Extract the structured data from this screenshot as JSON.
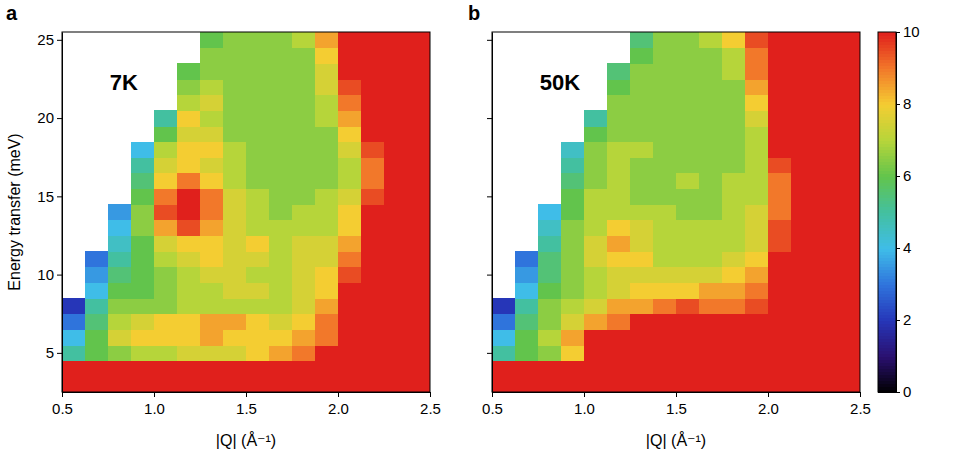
{
  "chart_data": [
    {
      "type": "heatmap",
      "label": "a",
      "annotation": "7K",
      "x_label": "|Q| (Å⁻¹)",
      "y_label": "Energy transfer (meV)",
      "xlim": [
        0.5,
        2.5
      ],
      "ylim": [
        2.5,
        25.5
      ],
      "xticks": [
        0.5,
        {
          "value": 1.0,
          "label": "1.0"
        },
        1.5,
        {
          "value": 2.0,
          "label": "2.0"
        },
        2.5
      ],
      "yticks": [
        5,
        10,
        15,
        20,
        25
      ],
      "x": [
        0.5625,
        0.6875,
        0.8125,
        0.9375,
        1.0625,
        1.1875,
        1.3125,
        1.4375,
        1.5625,
        1.6875,
        1.8125,
        1.9375,
        2.0625,
        2.1875,
        2.3125,
        2.4375
      ],
      "y": [
        3,
        4,
        5,
        6,
        7,
        8,
        9,
        10,
        11,
        12,
        13,
        14,
        15,
        16,
        17,
        18,
        19,
        20,
        21,
        22,
        23,
        24,
        25
      ],
      "z": [
        [
          10,
          10,
          10,
          10,
          10,
          10,
          10,
          10,
          10,
          10,
          10,
          10,
          10,
          10,
          10,
          10
        ],
        [
          10,
          10,
          10,
          10,
          10,
          10,
          10,
          10,
          10,
          10,
          10,
          10,
          10,
          10,
          10,
          10
        ],
        [
          5,
          6,
          6.5,
          7,
          7,
          7.5,
          7.5,
          7.5,
          8,
          8.5,
          9,
          10,
          10,
          10,
          10,
          10
        ],
        [
          4,
          6,
          7.5,
          8,
          8,
          8,
          8.5,
          8,
          8,
          8,
          8.5,
          9,
          10,
          10,
          10,
          10
        ],
        [
          3,
          5.5,
          7,
          7.5,
          8,
          8,
          8.5,
          8.5,
          8,
          7.5,
          8,
          9,
          10,
          10,
          10,
          10
        ],
        [
          2,
          5,
          6.5,
          6.5,
          6.5,
          7,
          7,
          7,
          7,
          7,
          7.5,
          8.5,
          10,
          10,
          10,
          10
        ],
        [
          null,
          4,
          6,
          6,
          6.5,
          7,
          7,
          7.5,
          7.5,
          7,
          7.5,
          8,
          10,
          10,
          10,
          10
        ],
        [
          null,
          3.5,
          5.5,
          6,
          6.5,
          7,
          7.5,
          7.5,
          7,
          7,
          7.5,
          8,
          9.5,
          10,
          10,
          10
        ],
        [
          null,
          3,
          5,
          6,
          7,
          7.5,
          8,
          7.5,
          7.5,
          7,
          7.5,
          7.5,
          9,
          10,
          10,
          10
        ],
        [
          null,
          null,
          4.5,
          6,
          7.5,
          8,
          8,
          7.5,
          8,
          7,
          7.5,
          7.5,
          8.5,
          10,
          10,
          10
        ],
        [
          null,
          null,
          4,
          6.5,
          8.5,
          9.5,
          8.5,
          7.5,
          7,
          7,
          7,
          7,
          8,
          10,
          10,
          10
        ],
        [
          null,
          null,
          3.5,
          6.5,
          9.5,
          10,
          9,
          7.5,
          7,
          6.5,
          7,
          7,
          8,
          10,
          10,
          10
        ],
        [
          null,
          null,
          null,
          6,
          9,
          10,
          9,
          7.5,
          7,
          6.5,
          6.5,
          7,
          7.5,
          9.5,
          10,
          10
        ],
        [
          null,
          null,
          null,
          5.5,
          8,
          9,
          8,
          7,
          6.5,
          6.5,
          6.5,
          6.5,
          7,
          9,
          10,
          10
        ],
        [
          null,
          null,
          null,
          5,
          7.5,
          8,
          7.5,
          7,
          6.5,
          6.5,
          6.5,
          6.5,
          7,
          9,
          10,
          10
        ],
        [
          null,
          null,
          null,
          4,
          7,
          8,
          8,
          7,
          6.5,
          6.5,
          6.5,
          6.5,
          7.5,
          9.5,
          10,
          10
        ],
        [
          null,
          null,
          null,
          null,
          6,
          7.5,
          7.5,
          6.5,
          6.5,
          6.5,
          6.5,
          6.5,
          8,
          10,
          10,
          10
        ],
        [
          null,
          null,
          null,
          null,
          5,
          8,
          7,
          6.5,
          6.5,
          6.5,
          6.5,
          7,
          8.5,
          10,
          10,
          10
        ],
        [
          null,
          null,
          null,
          null,
          null,
          7,
          7.5,
          6.5,
          6.5,
          6.5,
          6.5,
          7,
          9,
          10,
          10,
          10
        ],
        [
          null,
          null,
          null,
          null,
          null,
          6.5,
          7,
          6.5,
          6.5,
          6.5,
          6.5,
          7.5,
          9.5,
          10,
          10,
          10
        ],
        [
          null,
          null,
          null,
          null,
          null,
          6,
          6.5,
          6.5,
          6.5,
          6.5,
          6.5,
          7.5,
          10,
          10,
          10,
          10
        ],
        [
          null,
          null,
          null,
          null,
          null,
          null,
          6.5,
          6.5,
          6.5,
          6.5,
          6.5,
          8,
          10,
          10,
          10,
          10
        ],
        [
          null,
          null,
          null,
          null,
          null,
          null,
          6,
          6.5,
          6.5,
          6.5,
          7,
          8.5,
          10,
          10,
          10,
          10
        ]
      ]
    },
    {
      "type": "heatmap",
      "label": "b",
      "annotation": "50K",
      "x_label": "|Q| (Å⁻¹)",
      "tick_labels": "x",
      "xlim": [
        0.5,
        2.5
      ],
      "ylim": [
        2.5,
        25.5
      ],
      "xticks": [
        0.5,
        {
          "value": 1.0,
          "label": "1.0"
        },
        1.5,
        {
          "value": 2.0,
          "label": "2.0"
        },
        2.5
      ],
      "yticks": [
        5,
        10,
        15,
        20,
        25
      ],
      "colorbar": {
        "range": [
          0,
          10
        ],
        "ticks": [
          0,
          2,
          4,
          6,
          8,
          10
        ]
      },
      "x": [
        0.5625,
        0.6875,
        0.8125,
        0.9375,
        1.0625,
        1.1875,
        1.3125,
        1.4375,
        1.5625,
        1.6875,
        1.8125,
        1.9375,
        2.0625,
        2.1875,
        2.3125,
        2.4375
      ],
      "y": [
        3,
        4,
        5,
        6,
        7,
        8,
        9,
        10,
        11,
        12,
        13,
        14,
        15,
        16,
        17,
        18,
        19,
        20,
        21,
        22,
        23,
        24,
        25
      ],
      "z": [
        [
          10,
          10,
          10,
          10,
          10,
          10,
          10,
          10,
          10,
          10,
          10,
          10,
          10,
          10,
          10,
          10
        ],
        [
          10,
          10,
          10,
          10,
          10,
          10,
          10,
          10,
          10,
          10,
          10,
          10,
          10,
          10,
          10,
          10
        ],
        [
          5,
          6,
          6.5,
          8,
          10,
          10,
          10,
          10,
          10,
          10,
          10,
          10,
          10,
          10,
          10,
          10
        ],
        [
          4,
          6,
          7,
          8.5,
          10,
          10,
          10,
          10,
          10,
          10,
          10,
          10,
          10,
          10,
          10,
          10
        ],
        [
          3,
          5.5,
          6.5,
          7.5,
          8.5,
          9,
          10,
          10,
          10,
          10,
          10,
          10,
          10,
          10,
          10,
          10
        ],
        [
          2,
          5,
          6.5,
          7,
          7.5,
          8.5,
          8.5,
          9,
          9.5,
          9,
          9,
          9.5,
          10,
          10,
          10,
          10
        ],
        [
          null,
          4,
          6,
          6.5,
          7,
          7.5,
          8,
          8,
          8,
          8.5,
          8.5,
          9,
          10,
          10,
          10,
          10
        ],
        [
          null,
          3.5,
          5.5,
          6.5,
          7,
          7.5,
          7.5,
          7.5,
          7.5,
          7.5,
          8,
          8.5,
          10,
          10,
          10,
          10
        ],
        [
          null,
          3,
          5.5,
          6.5,
          7.5,
          8,
          8,
          7,
          7,
          7,
          7.5,
          8,
          10,
          10,
          10,
          10
        ],
        [
          null,
          null,
          5,
          6.5,
          7.5,
          8.5,
          7.5,
          7,
          7,
          7,
          7,
          7.5,
          9.5,
          10,
          10,
          10
        ],
        [
          null,
          null,
          4.5,
          6.5,
          7,
          8,
          7.5,
          7,
          7,
          7,
          7,
          7.5,
          9.5,
          10,
          10,
          10
        ],
        [
          null,
          null,
          4,
          6,
          7,
          7,
          7,
          7,
          6.5,
          6.5,
          7,
          7.5,
          9,
          10,
          10,
          10
        ],
        [
          null,
          null,
          null,
          6,
          7,
          7,
          6.5,
          6.5,
          6.5,
          6.5,
          7,
          7,
          9,
          10,
          10,
          10
        ],
        [
          null,
          null,
          null,
          5.5,
          6.5,
          7,
          6.5,
          6.5,
          7,
          6.5,
          7,
          7,
          9,
          10,
          10,
          10
        ],
        [
          null,
          null,
          null,
          5,
          6.5,
          7,
          6.5,
          6.5,
          6.5,
          6.5,
          6.5,
          7,
          9.5,
          10,
          10,
          10
        ],
        [
          null,
          null,
          null,
          4.5,
          6.5,
          7,
          7,
          6.5,
          6.5,
          6.5,
          6.5,
          7,
          10,
          10,
          10,
          10
        ],
        [
          null,
          null,
          null,
          null,
          6,
          6.5,
          6.5,
          6.5,
          6.5,
          6.5,
          6.5,
          7,
          10,
          10,
          10,
          10
        ],
        [
          null,
          null,
          null,
          null,
          5,
          6.5,
          6.5,
          6.5,
          6.5,
          6.5,
          6.5,
          7.5,
          10,
          10,
          10,
          10
        ],
        [
          null,
          null,
          null,
          null,
          null,
          6.5,
          6.5,
          6.5,
          6.5,
          6.5,
          6.5,
          8,
          10,
          10,
          10,
          10
        ],
        [
          null,
          null,
          null,
          null,
          null,
          6,
          6.5,
          6.5,
          6.5,
          6.5,
          6.5,
          8.5,
          10,
          10,
          10,
          10
        ],
        [
          null,
          null,
          null,
          null,
          null,
          5.5,
          6.5,
          6.5,
          6.5,
          6.5,
          7,
          9,
          10,
          10,
          10,
          10
        ],
        [
          null,
          null,
          null,
          null,
          null,
          null,
          6,
          6.5,
          6.5,
          6.5,
          7,
          9,
          10,
          10,
          10,
          10
        ],
        [
          null,
          null,
          null,
          null,
          null,
          null,
          5.5,
          6.5,
          6.5,
          7,
          8,
          9.5,
          10,
          10,
          10,
          10
        ]
      ]
    }
  ]
}
